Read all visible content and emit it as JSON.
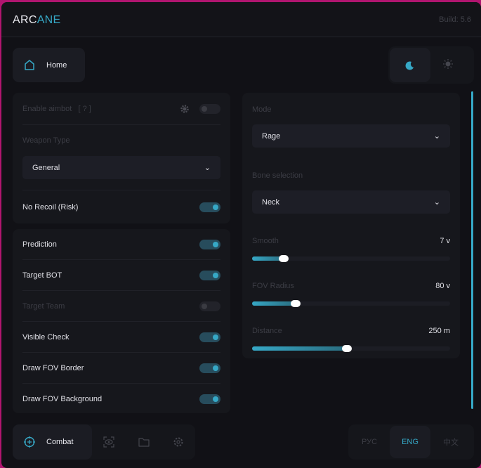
{
  "header": {
    "logo_a": "ARC",
    "logo_b": "ANE",
    "build": "Build: 5.6"
  },
  "top": {
    "home_label": "Home",
    "home_icon": "home-icon",
    "theme_dark_icon": "moon-icon",
    "theme_light_icon": "sun-icon"
  },
  "aimbot": {
    "enable_label": "Enable aimbot",
    "help": "[ ? ]",
    "enabled": false,
    "weapon_type_label": "Weapon Type",
    "weapon_type": "General",
    "no_recoil_label": "No Recoil (Risk)",
    "no_recoil": true
  },
  "toggles": [
    {
      "label": "Prediction",
      "on": true,
      "dim": false
    },
    {
      "label": "Target BOT",
      "on": true,
      "dim": false
    },
    {
      "label": "Target Team",
      "on": false,
      "dim": true
    },
    {
      "label": "Visible Check",
      "on": true,
      "dim": false
    },
    {
      "label": "Draw FOV Border",
      "on": true,
      "dim": false
    },
    {
      "label": "Draw FOV Background",
      "on": true,
      "dim": false
    }
  ],
  "right": {
    "mode_label": "Mode",
    "mode": "Rage",
    "bone_label": "Bone selection",
    "bone": "Neck",
    "sliders": [
      {
        "label": "Smooth",
        "value": "7 v",
        "fraction": 0.16
      },
      {
        "label": "FOV Radius",
        "value": "80 v",
        "fraction": 0.22
      },
      {
        "label": "Distance",
        "value": "250 m",
        "fraction": 0.48
      }
    ]
  },
  "footer": {
    "combat_label": "Combat",
    "tabs": [
      "crosshair-icon",
      "eye-scan-icon",
      "folder-icon",
      "gear-icon"
    ],
    "languages": [
      "РУС",
      "ENG",
      "中文"
    ],
    "active_language": "ENG"
  },
  "colors": {
    "accent": "#36a8c6",
    "background": "#111116"
  }
}
